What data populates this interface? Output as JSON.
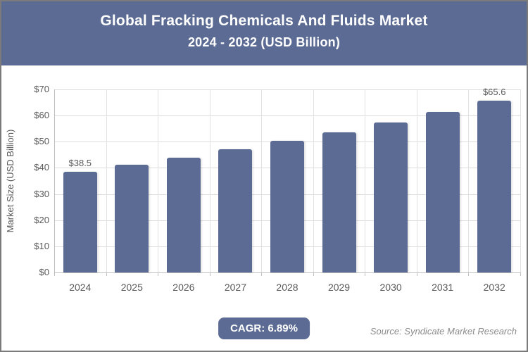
{
  "header": {
    "title_line1": "Global Fracking Chemicals And Fluids Market",
    "title_line2": "2024 - 2032 (USD Billion)"
  },
  "chart_data": {
    "type": "bar",
    "title": "Global Fracking Chemicals And Fluids Market 2024 - 2032 (USD Billion)",
    "xlabel": "",
    "ylabel": "Market Size (USD Billion)",
    "categories": [
      "2024",
      "2025",
      "2026",
      "2027",
      "2028",
      "2029",
      "2030",
      "2031",
      "2032"
    ],
    "values": [
      38.5,
      41.2,
      44.0,
      47.0,
      50.3,
      53.7,
      57.4,
      61.4,
      65.6
    ],
    "bar_labels": [
      "$38.5",
      "",
      "",
      "",
      "",
      "",
      "",
      "",
      "$65.6"
    ],
    "ylim": [
      0,
      70
    ],
    "ytick_step": 10,
    "ytick_labels": [
      "$0",
      "$10",
      "$20",
      "$30",
      "$40",
      "$50",
      "$60",
      "$70"
    ],
    "grid": true,
    "legend_position": "none"
  },
  "footer": {
    "cagr_badge": "CAGR: 6.89%",
    "source": "Source: Syndicate Market Research"
  },
  "colors": {
    "header_bg": "#5c6b94",
    "header_text": "#ffffff",
    "bar": "#5c6b94",
    "badge_bg": "#5c6b94",
    "gridline": "#dcdcdc",
    "axis": "#bfbfbf",
    "tick_text": "#595959",
    "source_text": "#8c8c8c",
    "page_border": "#7b7b7b"
  }
}
